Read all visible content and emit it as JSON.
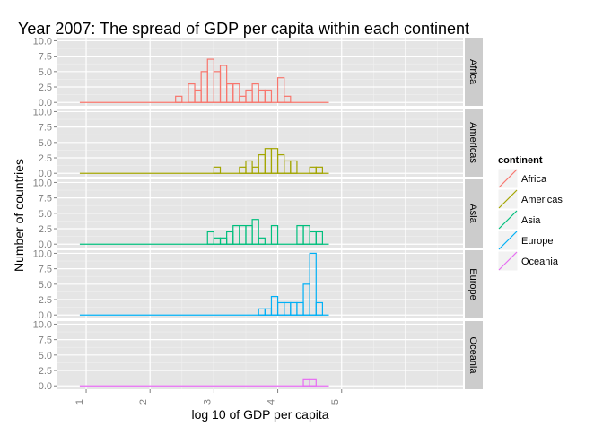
{
  "chart_data": {
    "type": "histogram",
    "title": "Year 2007: The spread of GDP per capita within each continent",
    "xlabel": "log 10 of GDP per capita",
    "ylabel": "Number of countries",
    "x_ticks": [
      "1",
      "2",
      "3",
      "4",
      "5"
    ],
    "y_ticks": [
      "0.0",
      "2.5",
      "5.0",
      "7.5",
      "10.0"
    ],
    "ylim": [
      0,
      10.5
    ],
    "bin_width": 0.1,
    "x_start": 0.9,
    "x_end": 4.8,
    "grid": true,
    "facets": "rows by continent",
    "legend": {
      "title": "continent",
      "position": "right"
    },
    "series": [
      {
        "name": "Africa",
        "color": "#F8766D",
        "bins": [
          {
            "x0": 2.4,
            "count": 1
          },
          {
            "x0": 2.5,
            "count": 0
          },
          {
            "x0": 2.6,
            "count": 3
          },
          {
            "x0": 2.7,
            "count": 2
          },
          {
            "x0": 2.8,
            "count": 5
          },
          {
            "x0": 2.9,
            "count": 7
          },
          {
            "x0": 3.0,
            "count": 5
          },
          {
            "x0": 3.1,
            "count": 6
          },
          {
            "x0": 3.2,
            "count": 3
          },
          {
            "x0": 3.3,
            "count": 3
          },
          {
            "x0": 3.4,
            "count": 1
          },
          {
            "x0": 3.5,
            "count": 2
          },
          {
            "x0": 3.6,
            "count": 3
          },
          {
            "x0": 3.7,
            "count": 2
          },
          {
            "x0": 3.8,
            "count": 2
          },
          {
            "x0": 3.9,
            "count": 0
          },
          {
            "x0": 4.0,
            "count": 4
          },
          {
            "x0": 4.1,
            "count": 1
          }
        ]
      },
      {
        "name": "Americas",
        "color": "#A3A500",
        "bins": [
          {
            "x0": 3.0,
            "count": 1
          },
          {
            "x0": 3.1,
            "count": 0
          },
          {
            "x0": 3.2,
            "count": 0
          },
          {
            "x0": 3.3,
            "count": 0
          },
          {
            "x0": 3.4,
            "count": 1
          },
          {
            "x0": 3.5,
            "count": 2
          },
          {
            "x0": 3.6,
            "count": 1
          },
          {
            "x0": 3.7,
            "count": 3
          },
          {
            "x0": 3.8,
            "count": 4
          },
          {
            "x0": 3.9,
            "count": 4
          },
          {
            "x0": 4.0,
            "count": 3
          },
          {
            "x0": 4.1,
            "count": 2
          },
          {
            "x0": 4.2,
            "count": 2
          },
          {
            "x0": 4.3,
            "count": 0
          },
          {
            "x0": 4.4,
            "count": 0
          },
          {
            "x0": 4.5,
            "count": 1
          },
          {
            "x0": 4.6,
            "count": 1
          }
        ]
      },
      {
        "name": "Asia",
        "color": "#00BF7D",
        "bins": [
          {
            "x0": 2.9,
            "count": 2
          },
          {
            "x0": 3.0,
            "count": 1
          },
          {
            "x0": 3.1,
            "count": 1
          },
          {
            "x0": 3.2,
            "count": 2
          },
          {
            "x0": 3.3,
            "count": 3
          },
          {
            "x0": 3.4,
            "count": 3
          },
          {
            "x0": 3.5,
            "count": 3
          },
          {
            "x0": 3.6,
            "count": 4
          },
          {
            "x0": 3.7,
            "count": 1
          },
          {
            "x0": 3.8,
            "count": 0
          },
          {
            "x0": 3.9,
            "count": 3
          },
          {
            "x0": 4.0,
            "count": 0
          },
          {
            "x0": 4.1,
            "count": 0
          },
          {
            "x0": 4.2,
            "count": 0
          },
          {
            "x0": 4.3,
            "count": 3
          },
          {
            "x0": 4.4,
            "count": 3
          },
          {
            "x0": 4.5,
            "count": 2
          },
          {
            "x0": 4.6,
            "count": 2
          }
        ]
      },
      {
        "name": "Europe",
        "color": "#00B0F6",
        "bins": [
          {
            "x0": 3.7,
            "count": 1
          },
          {
            "x0": 3.8,
            "count": 1
          },
          {
            "x0": 3.9,
            "count": 3
          },
          {
            "x0": 4.0,
            "count": 2
          },
          {
            "x0": 4.1,
            "count": 2
          },
          {
            "x0": 4.2,
            "count": 2
          },
          {
            "x0": 4.3,
            "count": 2
          },
          {
            "x0": 4.4,
            "count": 5
          },
          {
            "x0": 4.5,
            "count": 10
          },
          {
            "x0": 4.6,
            "count": 2
          }
        ]
      },
      {
        "name": "Oceania",
        "color": "#E76BF3",
        "bins": [
          {
            "x0": 4.4,
            "count": 1
          },
          {
            "x0": 4.5,
            "count": 1
          }
        ]
      }
    ]
  }
}
